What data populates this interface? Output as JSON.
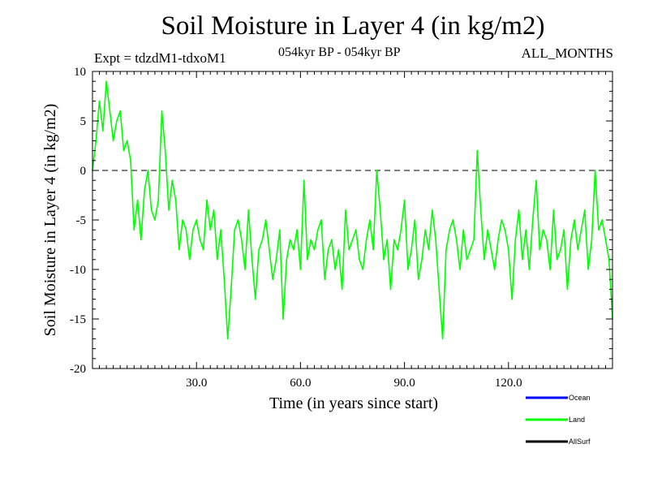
{
  "chart_data": {
    "type": "line",
    "title": "Soil Moisture in Layer 4 (in kg/m2)",
    "subtitle_left": "Expt = tdzdM1-tdxoM1",
    "subtitle_center": "054kyr BP - 054kyr BP",
    "subtitle_right": "ALL_MONTHS",
    "xlabel": "Time (in years since start)",
    "ylabel": "Soil Moisture in Layer 4 (in kg/m2)",
    "xlim": [
      0,
      150
    ],
    "ylim": [
      -20,
      10
    ],
    "x_ticks": [
      30,
      60,
      90,
      120
    ],
    "x_tick_labels": [
      "30.0",
      "60.0",
      "90.0",
      "120.0"
    ],
    "y_ticks": [
      -20,
      -15,
      -10,
      -5,
      0,
      5,
      10
    ],
    "y_tick_labels": [
      "-20",
      "-15",
      "-10",
      "-5",
      "0",
      "5",
      "10"
    ],
    "reference_line": 0,
    "series": [
      {
        "name": "Land",
        "color": "#00ff00",
        "x": [
          0,
          1,
          2,
          3,
          4,
          5,
          6,
          7,
          8,
          9,
          10,
          11,
          12,
          13,
          14,
          15,
          16,
          17,
          18,
          19,
          20,
          21,
          22,
          23,
          24,
          25,
          26,
          27,
          28,
          29,
          30,
          31,
          32,
          33,
          34,
          35,
          36,
          37,
          38,
          39,
          40,
          41,
          42,
          43,
          44,
          45,
          46,
          47,
          48,
          49,
          50,
          51,
          52,
          53,
          54,
          55,
          56,
          57,
          58,
          59,
          60,
          61,
          62,
          63,
          64,
          65,
          66,
          67,
          68,
          69,
          70,
          71,
          72,
          73,
          74,
          75,
          76,
          77,
          78,
          79,
          80,
          81,
          82,
          83,
          84,
          85,
          86,
          87,
          88,
          89,
          90,
          91,
          92,
          93,
          94,
          95,
          96,
          97,
          98,
          99,
          100,
          101,
          102,
          103,
          104,
          105,
          106,
          107,
          108,
          109,
          110,
          111,
          112,
          113,
          114,
          115,
          116,
          117,
          118,
          119,
          120,
          121,
          122,
          123,
          124,
          125,
          126,
          127,
          128,
          129,
          130,
          131,
          132,
          133,
          134,
          135,
          136,
          137,
          138,
          139,
          140,
          141,
          142,
          143,
          144,
          145,
          146,
          147,
          148,
          149,
          150
        ],
        "values": [
          0,
          3,
          7,
          4,
          9,
          6,
          3,
          5,
          6,
          2,
          3,
          1,
          -6,
          -3,
          -7,
          -2,
          0,
          -4,
          -5,
          -3,
          6,
          2,
          -4,
          -1,
          -3,
          -8,
          -5,
          -6,
          -9,
          -6,
          -5,
          -7,
          -8,
          -3,
          -6,
          -4,
          -9,
          -6,
          -11,
          -17,
          -12,
          -6,
          -5,
          -7,
          -10,
          -4,
          -9,
          -13,
          -8,
          -7,
          -5,
          -8,
          -11,
          -9,
          -6,
          -15,
          -9,
          -7,
          -8,
          -6,
          -10,
          -1,
          -9,
          -7,
          -8,
          -6,
          -5,
          -11,
          -8,
          -7,
          -10,
          -8,
          -12,
          -4,
          -8,
          -7,
          -6,
          -9,
          -10,
          -7,
          -5,
          -8,
          0,
          -4,
          -9,
          -7,
          -12,
          -7,
          -8,
          -6,
          -3,
          -10,
          -8,
          -5,
          -11,
          -9,
          -6,
          -8,
          -4,
          -7,
          -12,
          -17,
          -8,
          -6,
          -5,
          -7,
          -10,
          -6,
          -9,
          -8,
          -7,
          2,
          -4,
          -9,
          -6,
          -8,
          -10,
          -7,
          -5,
          -6,
          -8,
          -13,
          -7,
          -4,
          -9,
          -6,
          -10,
          -5,
          -1,
          -8,
          -6,
          -7,
          -10,
          -4,
          -9,
          -8,
          -6,
          -12,
          -7,
          -5,
          -8,
          -6,
          -4,
          -10,
          -7,
          0,
          -6,
          -5,
          -7,
          -9,
          -15
        ]
      }
    ],
    "legend": [
      {
        "label": "Ocean",
        "color": "#0000ff"
      },
      {
        "label": "Land",
        "color": "#00ff00"
      },
      {
        "label": "AllSurf",
        "color": "#000000"
      }
    ],
    "legend_position": "bottom-right"
  }
}
